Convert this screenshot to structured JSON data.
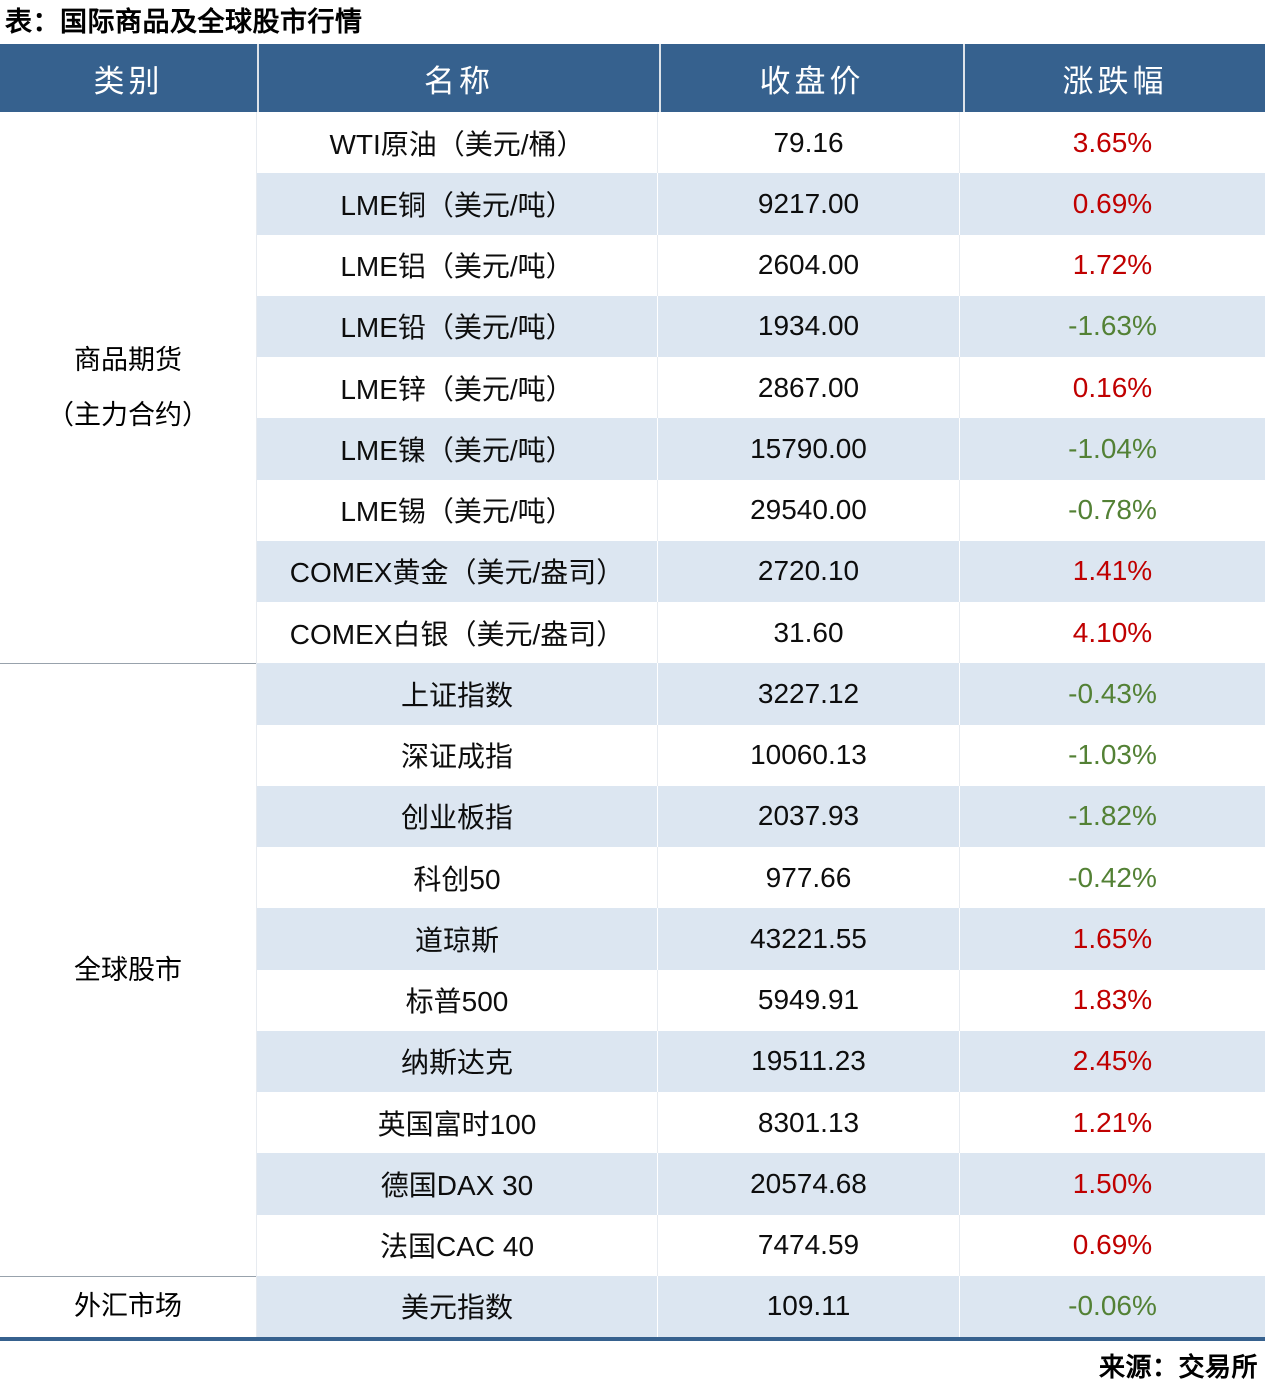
{
  "title": "表：国际商品及全球股市行情",
  "source": "来源：交易所",
  "colors": {
    "header_bg": "#36618E",
    "stripe_bg": "#DCE6F1",
    "up_red": "#C00000",
    "down_green": "#538135",
    "bottom_border": "#36618E"
  },
  "table": {
    "headers": [
      "类别",
      "名称",
      "收盘价",
      "涨跌幅"
    ],
    "sections": [
      {
        "category": "商品期货（主力合约）",
        "lines": [
          "商品期货",
          "（主力合约）"
        ],
        "rows": [
          {
            "name": "WTI原油（美元/桶）",
            "close": "79.16",
            "change": "3.65%"
          },
          {
            "name": "LME铜（美元/吨）",
            "close": "9217.00",
            "change": "0.69%"
          },
          {
            "name": "LME铝（美元/吨）",
            "close": "2604.00",
            "change": "1.72%"
          },
          {
            "name": "LME铅（美元/吨）",
            "close": "1934.00",
            "change": "-1.63%"
          },
          {
            "name": "LME锌（美元/吨）",
            "close": "2867.00",
            "change": "0.16%"
          },
          {
            "name": "LME镍（美元/吨）",
            "close": "15790.00",
            "change": "-1.04%"
          },
          {
            "name": "LME锡（美元/吨）",
            "close": "29540.00",
            "change": "-0.78%"
          },
          {
            "name": "COMEX黄金（美元/盎司）",
            "close": "2720.10",
            "change": "1.41%"
          },
          {
            "name": "COMEX白银（美元/盎司）",
            "close": "31.60",
            "change": "4.10%"
          }
        ]
      },
      {
        "category": "全球股市",
        "lines": [
          "全球股市"
        ],
        "rows": [
          {
            "name": "上证指数",
            "close": "3227.12",
            "change": "-0.43%"
          },
          {
            "name": "深证成指",
            "close": "10060.13",
            "change": "-1.03%"
          },
          {
            "name": "创业板指",
            "close": "2037.93",
            "change": "-1.82%"
          },
          {
            "name": "科创50",
            "close": "977.66",
            "change": "-0.42%"
          },
          {
            "name": "道琼斯",
            "close": "43221.55",
            "change": "1.65%"
          },
          {
            "name": "标普500",
            "close": "5949.91",
            "change": "1.83%"
          },
          {
            "name": "纳斯达克",
            "close": "19511.23",
            "change": "2.45%"
          },
          {
            "name": "英国富时100",
            "close": "8301.13",
            "change": "1.21%"
          },
          {
            "name": "德国DAX 30",
            "close": "20574.68",
            "change": "1.50%"
          },
          {
            "name": "法国CAC 40",
            "close": "7474.59",
            "change": "0.69%"
          }
        ]
      },
      {
        "category": "外汇市场",
        "lines": [
          "外汇市场"
        ],
        "rows": [
          {
            "name": "美元指数",
            "close": "109.11",
            "change": "-0.06%"
          }
        ]
      }
    ]
  },
  "chart_data": {
    "type": "table",
    "title": "表：国际商品及全球股市行情",
    "columns": [
      "类别",
      "名称",
      "收盘价",
      "涨跌幅"
    ],
    "rows": [
      [
        "商品期货（主力合约）",
        "WTI原油（美元/桶）",
        79.16,
        "3.65%"
      ],
      [
        "商品期货（主力合约）",
        "LME铜（美元/吨）",
        9217.0,
        "0.69%"
      ],
      [
        "商品期货（主力合约）",
        "LME铝（美元/吨）",
        2604.0,
        "1.72%"
      ],
      [
        "商品期货（主力合约）",
        "LME铅（美元/吨）",
        1934.0,
        "-1.63%"
      ],
      [
        "商品期货（主力合约）",
        "LME锌（美元/吨）",
        2867.0,
        "0.16%"
      ],
      [
        "商品期货（主力合约）",
        "LME镍（美元/吨）",
        15790.0,
        "-1.04%"
      ],
      [
        "商品期货（主力合约）",
        "LME锡（美元/吨）",
        29540.0,
        "-0.78%"
      ],
      [
        "商品期货（主力合约）",
        "COMEX黄金（美元/盎司）",
        2720.1,
        "1.41%"
      ],
      [
        "商品期货（主力合约）",
        "COMEX白银（美元/盎司）",
        31.6,
        "4.10%"
      ],
      [
        "全球股市",
        "上证指数",
        3227.12,
        "-0.43%"
      ],
      [
        "全球股市",
        "深证成指",
        10060.13,
        "-1.03%"
      ],
      [
        "全球股市",
        "创业板指",
        2037.93,
        "-1.82%"
      ],
      [
        "全球股市",
        "科创50",
        977.66,
        "-0.42%"
      ],
      [
        "全球股市",
        "道琼斯",
        43221.55,
        "1.65%"
      ],
      [
        "全球股市",
        "标普500",
        5949.91,
        "1.83%"
      ],
      [
        "全球股市",
        "纳斯达克",
        19511.23,
        "2.45%"
      ],
      [
        "全球股市",
        "英国富时100",
        8301.13,
        "1.21%"
      ],
      [
        "全球股市",
        "德国DAX 30",
        20574.68,
        "1.50%"
      ],
      [
        "全球股市",
        "法国CAC 40",
        7474.59,
        "0.69%"
      ],
      [
        "外汇市场",
        "美元指数",
        109.11,
        "-0.06%"
      ]
    ],
    "notes": "涨跌幅为正显示红色(#C00000)，为负显示绿色(#538135)；来源：交易所"
  }
}
